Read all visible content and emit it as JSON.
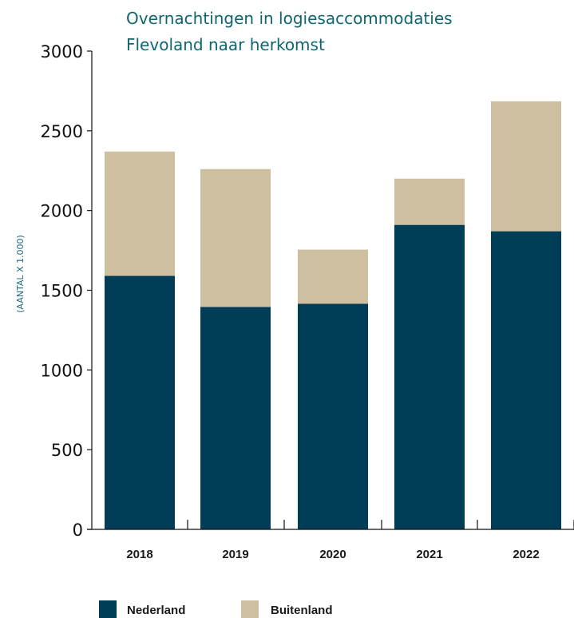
{
  "chart_data": {
    "type": "bar",
    "stacked": true,
    "title": [
      "Overnachtingen in logiesaccommodaties",
      "Flevoland naar herkomst"
    ],
    "ylabel": "(AANTAL X 1.000)",
    "xlabel": "",
    "ylim": [
      0,
      3000
    ],
    "yticks": [
      0,
      500,
      1000,
      1500,
      2000,
      2500,
      3000
    ],
    "categories": [
      "2018",
      "2019",
      "2020",
      "2021",
      "2022"
    ],
    "series": [
      {
        "name": "Nederland",
        "color": "#003d56",
        "values": [
          1590,
          1395,
          1415,
          1910,
          1870
        ]
      },
      {
        "name": "Buitenland",
        "color": "#cdbf9f",
        "values": [
          780,
          865,
          340,
          290,
          815
        ]
      }
    ],
    "legend_position": "bottom-left",
    "grid": false
  }
}
